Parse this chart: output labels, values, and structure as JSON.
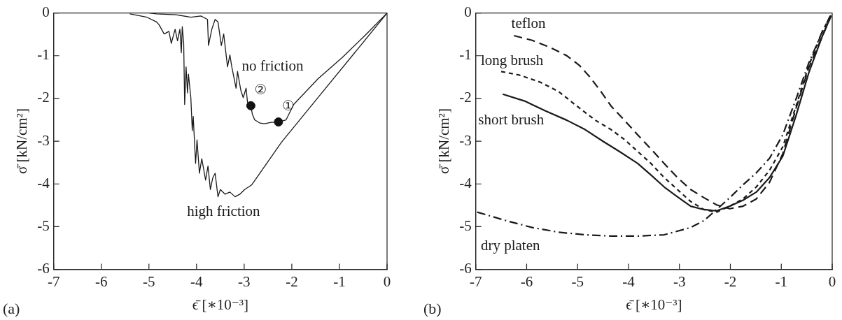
{
  "chart_data": [
    {
      "type": "line",
      "xlabel": "ϵ̄ [∗10⁻³]",
      "ylabel": "σ̄ [kN/cm²]",
      "xlim": [
        -7,
        0
      ],
      "ylim": [
        -6,
        0
      ],
      "xticks": [
        -7,
        -6,
        -5,
        -4,
        -3,
        -2,
        -1,
        0
      ],
      "yticks": [
        -6,
        -5,
        -4,
        -3,
        -2,
        -1,
        0
      ],
      "grid": false,
      "legend": false,
      "marker": "none",
      "annotations": [
        "(a)",
        {
          "text": "①",
          "x": -2.28,
          "y": -2.55
        },
        {
          "text": "②",
          "x": -2.86,
          "y": -2.17
        }
      ],
      "series": [
        {
          "name": "no friction",
          "color": "#1a1a1a",
          "line_style": "solid",
          "x": [
            0,
            -0.43,
            -0.94,
            -1.45,
            -1.96,
            -2.12,
            -2.28,
            -2.43,
            -2.58,
            -2.68,
            -2.78,
            -2.83,
            -2.86,
            -2.93,
            -2.96,
            -3.02,
            -3.07,
            -3.14,
            -3.17,
            -3.26,
            -3.3,
            -3.35,
            -3.43,
            -3.48,
            -3.55,
            -3.61,
            -3.68,
            -3.75,
            -3.77,
            -3.91,
            -4.12,
            -4.43,
            -4.84,
            -4.99
          ],
          "values": [
            0,
            -0.49,
            -1.04,
            -1.54,
            -2.14,
            -2.5,
            -2.55,
            -2.56,
            -2.59,
            -2.57,
            -2.5,
            -2.36,
            -2.17,
            -2.09,
            -1.76,
            -1.98,
            -1.81,
            -1.37,
            -1.76,
            -1.26,
            -0.98,
            -1.26,
            -0.49,
            -0.76,
            -0.21,
            -0.15,
            -0.38,
            -0.76,
            -0.15,
            -0.07,
            -0.1,
            -0.04,
            -0.02,
            0
          ]
        },
        {
          "name": "high friction",
          "color": "#1a1a1a",
          "line_style": "solid",
          "x": [
            0,
            -0.68,
            -1.45,
            -2.22,
            -2.84,
            -2.99,
            -3.09,
            -3.19,
            -3.3,
            -3.4,
            -3.5,
            -3.55,
            -3.61,
            -3.66,
            -3.71,
            -3.76,
            -3.81,
            -3.89,
            -3.94,
            -3.99,
            -4.02,
            -4.07,
            -4.09,
            -4.12,
            -4.17,
            -4.19,
            -4.22,
            -4.25,
            -4.27,
            -4.3,
            -4.32,
            -4.35,
            -4.4,
            -4.45,
            -4.53,
            -4.58,
            -4.68,
            -4.79,
            -4.84,
            -5.04,
            -5.4
          ],
          "values": [
            0,
            -0.93,
            -1.98,
            -3.03,
            -4.02,
            -4.13,
            -4.24,
            -4.3,
            -4.19,
            -4.24,
            -4.13,
            -4.3,
            -3.75,
            -3.86,
            -4.13,
            -3.58,
            -3.91,
            -3.41,
            -3.75,
            -2.97,
            -3.52,
            -2.42,
            -2.75,
            -1.98,
            -1.43,
            -1.87,
            -1.26,
            -2.14,
            -0.71,
            -0.32,
            -0.93,
            -0.38,
            -0.65,
            -0.38,
            -0.71,
            -0.43,
            -0.49,
            -0.27,
            -0.21,
            -0.1,
            -0.02
          ]
        },
        {
          "type": "scatter",
          "color": "#111111",
          "marker": "circle",
          "x": [
            -2.28,
            -2.86
          ],
          "values": [
            -2.55,
            -2.17
          ]
        }
      ]
    },
    {
      "type": "line",
      "xlabel": "ϵ̄ [∗10⁻³]",
      "ylabel": "σ̄ [kN/cm²]",
      "xlim": [
        -7,
        0
      ],
      "ylim": [
        -6,
        0
      ],
      "xticks": [
        -7,
        -6,
        -5,
        -4,
        -3,
        -2,
        -1,
        0
      ],
      "yticks": [
        -6,
        -5,
        -4,
        -3,
        -2,
        -1,
        0
      ],
      "grid": false,
      "legend": false,
      "marker": "none",
      "annotations": [
        "(b)"
      ],
      "series": [
        {
          "name": "teflon",
          "color": "#1a1a1a",
          "line_style": "dashed",
          "x": [
            -6.25,
            -5.89,
            -5.53,
            -5.21,
            -4.96,
            -4.75,
            -4.54,
            -4.34,
            -4.08,
            -3.82,
            -3.56,
            -3.3,
            -3.04,
            -2.78,
            -2.52,
            -2.27,
            -2.01,
            -1.75,
            -1.49,
            -1.23,
            -0.97,
            -0.71,
            -0.46,
            -0.2,
            -0.02
          ],
          "values": [
            -0.53,
            -0.64,
            -0.81,
            -1.0,
            -1.23,
            -1.51,
            -1.84,
            -2.18,
            -2.51,
            -2.85,
            -3.18,
            -3.52,
            -3.85,
            -4.13,
            -4.32,
            -4.49,
            -4.58,
            -4.52,
            -4.35,
            -3.96,
            -3.29,
            -2.23,
            -1.28,
            -0.56,
            -0.06
          ]
        },
        {
          "name": "long brush",
          "color": "#1a1a1a",
          "line_style": "dotted",
          "x": [
            -6.5,
            -6.15,
            -5.73,
            -5.37,
            -5.01,
            -4.65,
            -4.34,
            -4.08,
            -3.82,
            -3.56,
            -3.3,
            -3.04,
            -2.78,
            -2.52,
            -2.27,
            -2.01,
            -1.75,
            -1.49,
            -1.23,
            -0.97,
            -0.71,
            -0.46,
            -0.2,
            -0.02
          ],
          "values": [
            -1.37,
            -1.45,
            -1.62,
            -1.84,
            -2.18,
            -2.51,
            -2.73,
            -2.96,
            -3.24,
            -3.52,
            -3.85,
            -4.13,
            -4.41,
            -4.6,
            -4.66,
            -4.52,
            -4.35,
            -4.07,
            -3.68,
            -3.13,
            -2.18,
            -1.23,
            -0.45,
            -0.03
          ]
        },
        {
          "name": "short brush",
          "color": "#1a1a1a",
          "line_style": "solid",
          "x": [
            -6.47,
            -6.04,
            -5.63,
            -5.21,
            -4.85,
            -4.49,
            -4.18,
            -3.82,
            -3.56,
            -3.3,
            -3.04,
            -2.78,
            -2.52,
            -2.27,
            -2.01,
            -1.75,
            -1.49,
            -1.23,
            -0.97,
            -0.71,
            -0.46,
            -0.2,
            -0.02
          ],
          "values": [
            -1.9,
            -2.06,
            -2.29,
            -2.51,
            -2.73,
            -3.01,
            -3.24,
            -3.52,
            -3.79,
            -4.07,
            -4.3,
            -4.52,
            -4.6,
            -4.63,
            -4.52,
            -4.38,
            -4.19,
            -3.85,
            -3.35,
            -2.4,
            -1.4,
            -0.56,
            -0.06
          ]
        },
        {
          "name": "dry platen",
          "color": "#1a1a1a",
          "line_style": "dashdot",
          "x": [
            -6.97,
            -6.4,
            -5.89,
            -5.37,
            -4.85,
            -4.34,
            -3.82,
            -3.3,
            -2.78,
            -2.52,
            -2.27,
            -2.01,
            -1.75,
            -1.49,
            -1.23,
            -0.97,
            -0.71,
            -0.46,
            -0.2,
            -0.02
          ],
          "values": [
            -4.66,
            -4.86,
            -5.02,
            -5.13,
            -5.19,
            -5.22,
            -5.22,
            -5.19,
            -5.02,
            -4.86,
            -4.6,
            -4.32,
            -4.02,
            -3.74,
            -3.4,
            -2.85,
            -2.01,
            -1.17,
            -0.45,
            -0.03
          ]
        }
      ]
    }
  ]
}
